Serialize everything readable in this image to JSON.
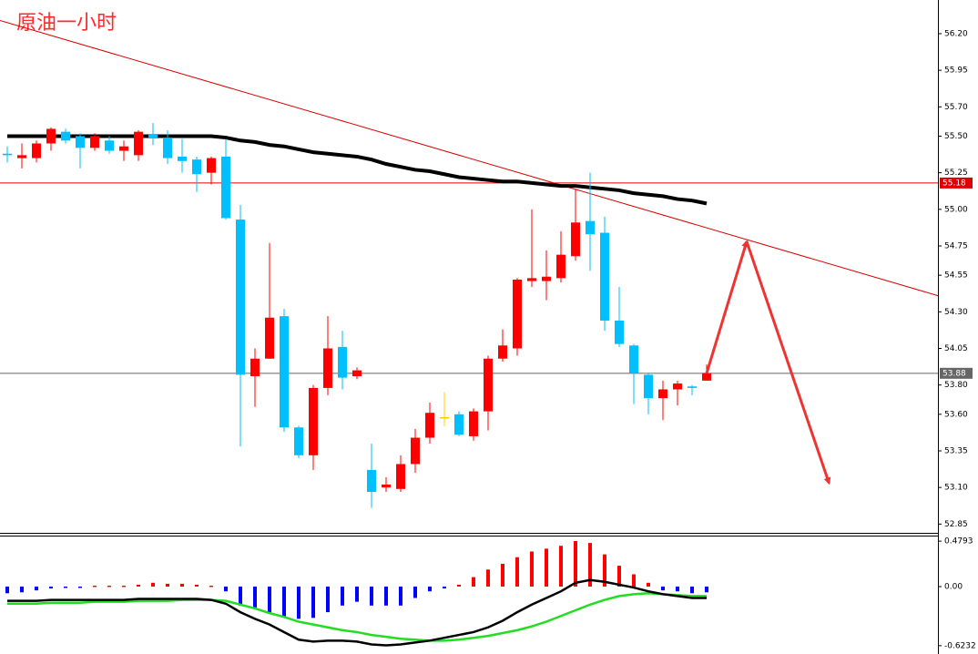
{
  "chart_data": [
    {
      "type": "candlestick",
      "title": "原油一小时",
      "open": [
        55.38,
        55.35,
        55.35,
        55.45,
        55.53,
        55.5,
        55.42,
        55.47,
        55.4,
        55.37,
        55.51,
        55.49,
        55.36,
        55.34,
        55.25,
        55.36,
        54.93,
        53.86,
        53.98,
        54.27,
        53.51,
        53.32,
        53.78,
        54.06,
        53.86,
        53.22,
        53.1,
        53.09,
        53.26,
        53.44,
        53.58,
        53.6,
        53.45,
        53.62,
        53.98,
        54.05,
        54.51,
        54.51,
        54.53,
        54.68,
        54.92,
        54.84,
        54.24,
        54.07,
        53.87,
        53.71,
        53.77,
        53.79,
        53.83
      ],
      "high": [
        55.43,
        55.45,
        55.47,
        55.56,
        55.55,
        55.52,
        55.52,
        55.5,
        55.47,
        55.54,
        55.59,
        55.54,
        55.48,
        55.36,
        55.36,
        55.48,
        55.03,
        54.05,
        54.77,
        54.32,
        53.52,
        53.8,
        54.27,
        54.17,
        53.92,
        53.4,
        53.17,
        53.32,
        53.5,
        53.68,
        53.75,
        53.62,
        53.64,
        54.0,
        54.18,
        54.53,
        55.0,
        54.72,
        54.85,
        55.14,
        55.25,
        54.95,
        54.47,
        54.08,
        53.88,
        53.83,
        53.83,
        53.8,
        53.94
      ],
      "low": [
        55.32,
        55.28,
        55.32,
        55.4,
        55.45,
        55.28,
        55.4,
        55.38,
        55.33,
        55.33,
        55.44,
        55.31,
        55.25,
        55.12,
        55.17,
        54.93,
        53.38,
        53.65,
        53.98,
        53.48,
        53.3,
        53.22,
        53.73,
        53.77,
        53.84,
        52.96,
        53.07,
        53.07,
        53.2,
        53.4,
        53.52,
        53.45,
        53.42,
        53.49,
        53.96,
        54.0,
        54.47,
        54.38,
        54.5,
        54.65,
        54.58,
        54.17,
        54.06,
        53.67,
        53.6,
        53.56,
        53.66,
        53.73,
        53.83
      ],
      "close": [
        55.37,
        55.37,
        55.45,
        55.55,
        55.47,
        55.42,
        55.5,
        55.4,
        55.43,
        55.53,
        55.49,
        55.35,
        55.33,
        55.24,
        55.35,
        54.94,
        53.87,
        53.98,
        54.26,
        53.51,
        53.32,
        53.78,
        54.05,
        53.85,
        53.9,
        53.07,
        53.12,
        53.26,
        53.44,
        53.61,
        53.58,
        53.46,
        53.62,
        53.98,
        54.07,
        54.52,
        54.53,
        54.54,
        54.69,
        54.91,
        54.83,
        54.24,
        54.08,
        53.88,
        53.71,
        53.77,
        53.81,
        53.78,
        53.88
      ],
      "ma": [
        55.5,
        55.5,
        55.5,
        55.5,
        55.5,
        55.5,
        55.5,
        55.5,
        55.5,
        55.5,
        55.5,
        55.5,
        55.5,
        55.5,
        55.5,
        55.49,
        55.47,
        55.46,
        55.44,
        55.43,
        55.41,
        55.39,
        55.38,
        55.37,
        55.36,
        55.34,
        55.31,
        55.29,
        55.27,
        55.26,
        55.24,
        55.22,
        55.21,
        55.2,
        55.19,
        55.19,
        55.18,
        55.17,
        55.16,
        55.16,
        55.15,
        55.14,
        55.13,
        55.11,
        55.1,
        55.09,
        55.07,
        55.06,
        55.04
      ],
      "up_color": "#ff0000",
      "down_color": "#00bfff",
      "doji_color": "#ffcc00",
      "ma_color": "#000000",
      "trendline": [
        56.29,
        54.41
      ],
      "trendline_color": "#dd0000",
      "levels": [
        {
          "value": 55.18,
          "color": "#dd0000"
        },
        {
          "value": 53.88,
          "color": "#666666"
        }
      ],
      "projection": {
        "x": [
          48,
          50.75,
          56.4
        ],
        "values": [
          53.88,
          54.78,
          53.13
        ],
        "color": "#ee3333"
      },
      "ylim": [
        52.79,
        56.43
      ],
      "yticks": [
        52.85,
        {
          "value": 53.1,
          "label": "53.10"
        },
        53.35,
        {
          "value": 53.6,
          "label": "53.60"
        },
        {
          "value": 53.8,
          "label": "53.80"
        },
        54.05,
        {
          "value": 54.3,
          "label": "54.30"
        },
        54.55,
        54.75,
        {
          "value": 55,
          "label": "55.00"
        },
        55.25,
        {
          "value": 55.5,
          "label": "55.50"
        },
        {
          "value": 55.7,
          "label": "55.70"
        },
        55.95,
        {
          "value": 56.2,
          "label": "56.20"
        }
      ]
    },
    {
      "type": "macd",
      "histogram": [
        -0.07,
        -0.06,
        -0.04,
        -0.02,
        -0.01,
        -0.01,
        0.01,
        0.01,
        0.01,
        0.02,
        0.04,
        0.03,
        0.03,
        0.02,
        0.01,
        -0.05,
        -0.2,
        -0.22,
        -0.28,
        -0.32,
        -0.34,
        -0.33,
        -0.27,
        -0.2,
        -0.16,
        -0.2,
        -0.2,
        -0.2,
        -0.12,
        -0.05,
        -0.02,
        0.02,
        0.1,
        0.18,
        0.24,
        0.31,
        0.37,
        0.4,
        0.43,
        0.48,
        0.46,
        0.34,
        0.22,
        0.13,
        0.04,
        -0.04,
        -0.05,
        -0.07,
        -0.06
      ],
      "series": [
        {
          "color": "#000000",
          "values": [
            -0.15,
            -0.15,
            -0.15,
            -0.14,
            -0.14,
            -0.14,
            -0.14,
            -0.14,
            -0.14,
            -0.13,
            -0.13,
            -0.13,
            -0.13,
            -0.13,
            -0.14,
            -0.18,
            -0.27,
            -0.34,
            -0.4,
            -0.48,
            -0.56,
            -0.58,
            -0.57,
            -0.57,
            -0.58,
            -0.61,
            -0.62,
            -0.61,
            -0.59,
            -0.57,
            -0.54,
            -0.51,
            -0.48,
            -0.43,
            -0.36,
            -0.27,
            -0.19,
            -0.12,
            -0.05,
            0.04,
            0.07,
            0.05,
            0.02,
            -0.01,
            -0.05,
            -0.08,
            -0.1,
            -0.12,
            -0.12
          ]
        },
        {
          "color": "#22dd22",
          "values": [
            -0.18,
            -0.18,
            -0.18,
            -0.17,
            -0.17,
            -0.17,
            -0.16,
            -0.16,
            -0.16,
            -0.15,
            -0.15,
            -0.15,
            -0.14,
            -0.14,
            -0.14,
            -0.15,
            -0.19,
            -0.23,
            -0.28,
            -0.32,
            -0.37,
            -0.4,
            -0.43,
            -0.46,
            -0.48,
            -0.51,
            -0.53,
            -0.55,
            -0.56,
            -0.57,
            -0.57,
            -0.56,
            -0.54,
            -0.52,
            -0.49,
            -0.46,
            -0.42,
            -0.37,
            -0.31,
            -0.25,
            -0.19,
            -0.14,
            -0.1,
            -0.08,
            -0.07,
            -0.08,
            -0.09,
            -0.1,
            -0.1
          ]
        }
      ],
      "pos_color": "#ff0000",
      "neg_color": "#0000ff",
      "ylim": [
        -0.711,
        0.538
      ],
      "yticks": [
        0.4793,
        {
          "value": 0,
          "label": "0.00"
        },
        -0.6232
      ]
    }
  ]
}
